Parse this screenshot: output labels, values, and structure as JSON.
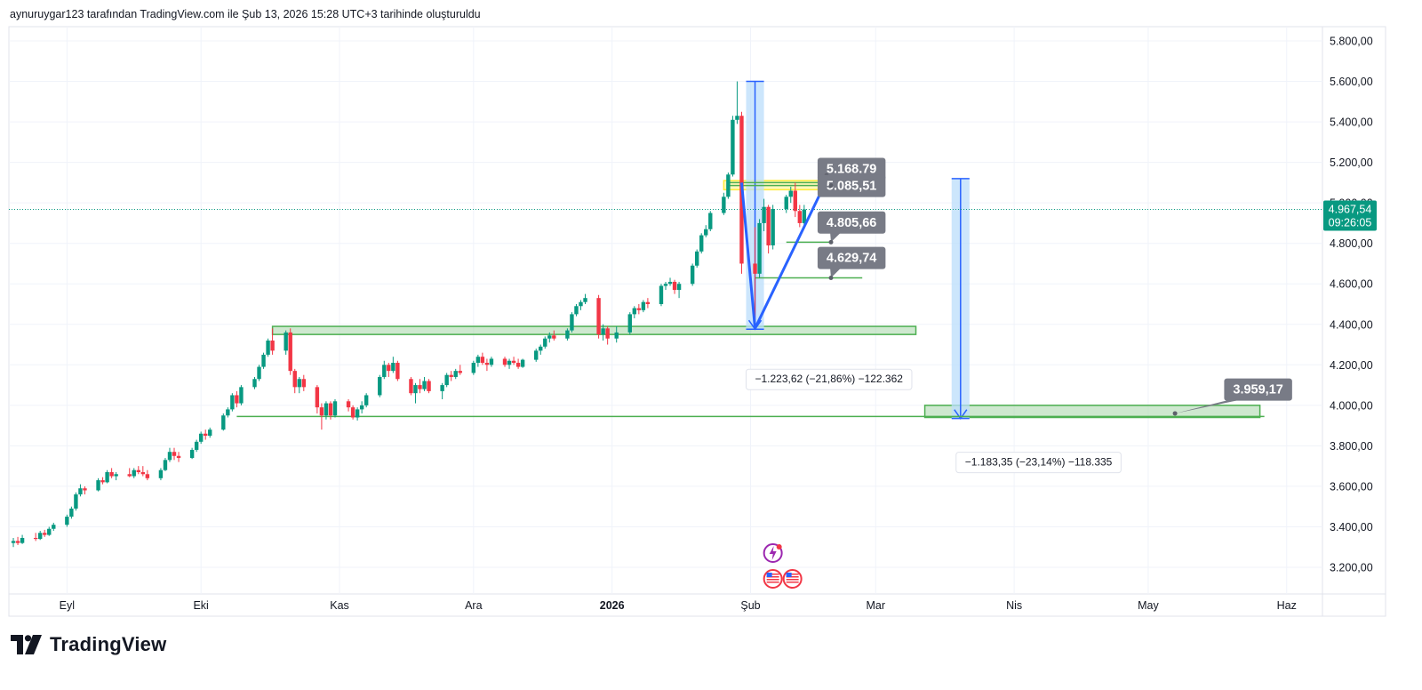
{
  "header": {
    "caption": "aynuruygar123 tarafından TradingView.com ile Şub 13, 2026 15:28 UTC+3 tarihinde oluşturuldu"
  },
  "brand": {
    "name": "TradingView",
    "logo_icon": "tradingview-logo-icon"
  },
  "colors": {
    "up": "#089981",
    "down": "#f23645",
    "grid": "#f0f3fa",
    "axis_text": "#131722",
    "zone_fill": "#a5d6a7",
    "zone_stroke": "#4caf50",
    "measure_fill": "#bbdefb",
    "measure_line": "#2962ff",
    "callout_bg": "#787b86",
    "highlight": "#ffeb3b"
  },
  "chart_data": {
    "type": "candlestick",
    "title": "",
    "xlabel": "",
    "ylabel": "",
    "ylim": [
      3050,
      5900
    ],
    "y_ticks": [
      "5.800,00",
      "5.600,00",
      "5.400,00",
      "5.200,00",
      "5.000,00",
      "4.800,00",
      "4.600,00",
      "4.400,00",
      "4.200,00",
      "4.000,00",
      "3.800,00",
      "3.600,00",
      "3.400,00",
      "3.200,00"
    ],
    "y_tick_values": [
      5800,
      5600,
      5400,
      5200,
      5000,
      4800,
      4600,
      4400,
      4200,
      4000,
      3800,
      3600,
      3400,
      3200
    ],
    "x_ticks": [
      "Eyl",
      "Eki",
      "Kas",
      "Ara",
      "2026",
      "Şub",
      "Mar",
      "Nis",
      "May",
      "Haz"
    ],
    "x_tick_dates": [
      "2025-09-01",
      "2025-10-01",
      "2025-11-01",
      "2025-12-01",
      "2026-01-01",
      "2026-02-01",
      "2026-03-01",
      "2026-04-01",
      "2026-05-01",
      "2026-06-01"
    ],
    "x_range": [
      "2025-08-19",
      "2026-06-09"
    ],
    "last_price": {
      "label": "4.967,54",
      "countdown": "09:26:05",
      "value": 4967.54
    },
    "candles": [
      {
        "date": "2025-08-20",
        "o": 3320,
        "h": 3345,
        "l": 3300,
        "c": 3330
      },
      {
        "date": "2025-08-21",
        "o": 3330,
        "h": 3350,
        "l": 3310,
        "c": 3320
      },
      {
        "date": "2025-08-22",
        "o": 3320,
        "h": 3360,
        "l": 3315,
        "c": 3345
      },
      {
        "date": "2025-08-25",
        "o": 3345,
        "h": 3370,
        "l": 3330,
        "c": 3340
      },
      {
        "date": "2025-08-26",
        "o": 3340,
        "h": 3380,
        "l": 3335,
        "c": 3370
      },
      {
        "date": "2025-08-27",
        "o": 3370,
        "h": 3385,
        "l": 3350,
        "c": 3360
      },
      {
        "date": "2025-08-28",
        "o": 3360,
        "h": 3400,
        "l": 3355,
        "c": 3390
      },
      {
        "date": "2025-08-29",
        "o": 3390,
        "h": 3420,
        "l": 3380,
        "c": 3410
      },
      {
        "date": "2025-09-01",
        "o": 3410,
        "h": 3460,
        "l": 3400,
        "c": 3450
      },
      {
        "date": "2025-09-02",
        "o": 3450,
        "h": 3500,
        "l": 3440,
        "c": 3490
      },
      {
        "date": "2025-09-03",
        "o": 3490,
        "h": 3570,
        "l": 3480,
        "c": 3560
      },
      {
        "date": "2025-09-04",
        "o": 3560,
        "h": 3610,
        "l": 3550,
        "c": 3590
      },
      {
        "date": "2025-09-05",
        "o": 3590,
        "h": 3600,
        "l": 3560,
        "c": 3580
      },
      {
        "date": "2025-09-08",
        "o": 3580,
        "h": 3640,
        "l": 3575,
        "c": 3630
      },
      {
        "date": "2025-09-09",
        "o": 3630,
        "h": 3645,
        "l": 3610,
        "c": 3620
      },
      {
        "date": "2025-09-10",
        "o": 3620,
        "h": 3680,
        "l": 3615,
        "c": 3670
      },
      {
        "date": "2025-09-11",
        "o": 3670,
        "h": 3690,
        "l": 3640,
        "c": 3650
      },
      {
        "date": "2025-09-12",
        "o": 3650,
        "h": 3670,
        "l": 3630,
        "c": 3660
      },
      {
        "date": "2025-09-15",
        "o": 3660,
        "h": 3690,
        "l": 3645,
        "c": 3650
      },
      {
        "date": "2025-09-16",
        "o": 3650,
        "h": 3690,
        "l": 3640,
        "c": 3680
      },
      {
        "date": "2025-09-17",
        "o": 3680,
        "h": 3700,
        "l": 3660,
        "c": 3670
      },
      {
        "date": "2025-09-18",
        "o": 3670,
        "h": 3700,
        "l": 3650,
        "c": 3660
      },
      {
        "date": "2025-09-19",
        "o": 3660,
        "h": 3680,
        "l": 3630,
        "c": 3640
      },
      {
        "date": "2025-09-22",
        "o": 3640,
        "h": 3690,
        "l": 3630,
        "c": 3680
      },
      {
        "date": "2025-09-23",
        "o": 3680,
        "h": 3740,
        "l": 3675,
        "c": 3730
      },
      {
        "date": "2025-09-24",
        "o": 3730,
        "h": 3790,
        "l": 3720,
        "c": 3770
      },
      {
        "date": "2025-09-25",
        "o": 3770,
        "h": 3790,
        "l": 3730,
        "c": 3750
      },
      {
        "date": "2025-09-26",
        "o": 3750,
        "h": 3770,
        "l": 3720,
        "c": 3740
      },
      {
        "date": "2025-09-29",
        "o": 3740,
        "h": 3790,
        "l": 3735,
        "c": 3780
      },
      {
        "date": "2025-09-30",
        "o": 3780,
        "h": 3830,
        "l": 3770,
        "c": 3820
      },
      {
        "date": "2025-10-01",
        "o": 3820,
        "h": 3870,
        "l": 3810,
        "c": 3860
      },
      {
        "date": "2025-10-02",
        "o": 3860,
        "h": 3880,
        "l": 3830,
        "c": 3850
      },
      {
        "date": "2025-10-03",
        "o": 3850,
        "h": 3890,
        "l": 3840,
        "c": 3880
      },
      {
        "date": "2025-10-06",
        "o": 3880,
        "h": 3960,
        "l": 3875,
        "c": 3950
      },
      {
        "date": "2025-10-07",
        "o": 3950,
        "h": 3990,
        "l": 3940,
        "c": 3980
      },
      {
        "date": "2025-10-08",
        "o": 3980,
        "h": 4060,
        "l": 3970,
        "c": 4050
      },
      {
        "date": "2025-10-09",
        "o": 4050,
        "h": 4070,
        "l": 3990,
        "c": 4010
      },
      {
        "date": "2025-10-10",
        "o": 4010,
        "h": 4100,
        "l": 4000,
        "c": 4090
      },
      {
        "date": "2025-10-13",
        "o": 4090,
        "h": 4140,
        "l": 4080,
        "c": 4130
      },
      {
        "date": "2025-10-14",
        "o": 4130,
        "h": 4200,
        "l": 4120,
        "c": 4190
      },
      {
        "date": "2025-10-15",
        "o": 4190,
        "h": 4260,
        "l": 4180,
        "c": 4250
      },
      {
        "date": "2025-10-16",
        "o": 4250,
        "h": 4330,
        "l": 4240,
        "c": 4320
      },
      {
        "date": "2025-10-17",
        "o": 4320,
        "h": 4380,
        "l": 4250,
        "c": 4270
      },
      {
        "date": "2025-10-20",
        "o": 4270,
        "h": 4370,
        "l": 4250,
        "c": 4360
      },
      {
        "date": "2025-10-21",
        "o": 4360,
        "h": 4380,
        "l": 4150,
        "c": 4170
      },
      {
        "date": "2025-10-22",
        "o": 4170,
        "h": 4180,
        "l": 4060,
        "c": 4090
      },
      {
        "date": "2025-10-23",
        "o": 4090,
        "h": 4140,
        "l": 4060,
        "c": 4130
      },
      {
        "date": "2025-10-24",
        "o": 4130,
        "h": 4150,
        "l": 4070,
        "c": 4090
      },
      {
        "date": "2025-10-27",
        "o": 4090,
        "h": 4100,
        "l": 3960,
        "c": 3990
      },
      {
        "date": "2025-10-28",
        "o": 3990,
        "h": 4010,
        "l": 3880,
        "c": 3950
      },
      {
        "date": "2025-10-29",
        "o": 3950,
        "h": 4020,
        "l": 3930,
        "c": 4010
      },
      {
        "date": "2025-10-30",
        "o": 4010,
        "h": 4020,
        "l": 3930,
        "c": 3950
      },
      {
        "date": "2025-10-31",
        "o": 3950,
        "h": 4030,
        "l": 3940,
        "c": 4020
      },
      {
        "date": "2025-11-03",
        "o": 4020,
        "h": 4030,
        "l": 3970,
        "c": 3990
      },
      {
        "date": "2025-11-04",
        "o": 3990,
        "h": 4000,
        "l": 3930,
        "c": 3940
      },
      {
        "date": "2025-11-05",
        "o": 3940,
        "h": 3990,
        "l": 3925,
        "c": 3980
      },
      {
        "date": "2025-11-06",
        "o": 3980,
        "h": 4020,
        "l": 3960,
        "c": 4000
      },
      {
        "date": "2025-11-07",
        "o": 4000,
        "h": 4060,
        "l": 3990,
        "c": 4050
      },
      {
        "date": "2025-11-10",
        "o": 4050,
        "h": 4150,
        "l": 4040,
        "c": 4140
      },
      {
        "date": "2025-11-11",
        "o": 4140,
        "h": 4220,
        "l": 4130,
        "c": 4200
      },
      {
        "date": "2025-11-12",
        "o": 4200,
        "h": 4210,
        "l": 4140,
        "c": 4170
      },
      {
        "date": "2025-11-13",
        "o": 4170,
        "h": 4240,
        "l": 4160,
        "c": 4210
      },
      {
        "date": "2025-11-14",
        "o": 4210,
        "h": 4220,
        "l": 4120,
        "c": 4130
      },
      {
        "date": "2025-11-17",
        "o": 4130,
        "h": 4140,
        "l": 4050,
        "c": 4060
      },
      {
        "date": "2025-11-18",
        "o": 4060,
        "h": 4110,
        "l": 4010,
        "c": 4100
      },
      {
        "date": "2025-11-19",
        "o": 4100,
        "h": 4130,
        "l": 4060,
        "c": 4080
      },
      {
        "date": "2025-11-20",
        "o": 4080,
        "h": 4140,
        "l": 4070,
        "c": 4120
      },
      {
        "date": "2025-11-21",
        "o": 4120,
        "h": 4130,
        "l": 4060,
        "c": 4070
      },
      {
        "date": "2025-11-24",
        "o": 4070,
        "h": 4110,
        "l": 4030,
        "c": 4100
      },
      {
        "date": "2025-11-25",
        "o": 4100,
        "h": 4160,
        "l": 4090,
        "c": 4150
      },
      {
        "date": "2025-11-26",
        "o": 4150,
        "h": 4170,
        "l": 4120,
        "c": 4140
      },
      {
        "date": "2025-11-27",
        "o": 4140,
        "h": 4180,
        "l": 4130,
        "c": 4170
      },
      {
        "date": "2025-11-28",
        "o": 4170,
        "h": 4200,
        "l": 4150,
        "c": 4160
      },
      {
        "date": "2025-12-01",
        "o": 4160,
        "h": 4220,
        "l": 4150,
        "c": 4210
      },
      {
        "date": "2025-12-02",
        "o": 4210,
        "h": 4250,
        "l": 4190,
        "c": 4240
      },
      {
        "date": "2025-12-03",
        "o": 4240,
        "h": 4260,
        "l": 4200,
        "c": 4210
      },
      {
        "date": "2025-12-04",
        "o": 4210,
        "h": 4230,
        "l": 4170,
        "c": 4200
      },
      {
        "date": "2025-12-05",
        "o": 4200,
        "h": 4240,
        "l": 4190,
        "c": 4230
      },
      {
        "date": "2025-12-08",
        "o": 4230,
        "h": 4240,
        "l": 4190,
        "c": 4200
      },
      {
        "date": "2025-12-09",
        "o": 4200,
        "h": 4230,
        "l": 4180,
        "c": 4220
      },
      {
        "date": "2025-12-10",
        "o": 4220,
        "h": 4240,
        "l": 4200,
        "c": 4210
      },
      {
        "date": "2025-12-11",
        "o": 4210,
        "h": 4230,
        "l": 4180,
        "c": 4190
      },
      {
        "date": "2025-12-12",
        "o": 4190,
        "h": 4230,
        "l": 4185,
        "c": 4225
      },
      {
        "date": "2025-12-15",
        "o": 4225,
        "h": 4280,
        "l": 4215,
        "c": 4270
      },
      {
        "date": "2025-12-16",
        "o": 4270,
        "h": 4300,
        "l": 4250,
        "c": 4290
      },
      {
        "date": "2025-12-17",
        "o": 4290,
        "h": 4340,
        "l": 4280,
        "c": 4330
      },
      {
        "date": "2025-12-18",
        "o": 4330,
        "h": 4360,
        "l": 4310,
        "c": 4345
      },
      {
        "date": "2025-12-19",
        "o": 4345,
        "h": 4370,
        "l": 4320,
        "c": 4330
      },
      {
        "date": "2025-12-22",
        "o": 4330,
        "h": 4380,
        "l": 4320,
        "c": 4370
      },
      {
        "date": "2025-12-23",
        "o": 4370,
        "h": 4460,
        "l": 4360,
        "c": 4450
      },
      {
        "date": "2025-12-24",
        "o": 4450,
        "h": 4500,
        "l": 4440,
        "c": 4490
      },
      {
        "date": "2025-12-25",
        "o": 4490,
        "h": 4520,
        "l": 4470,
        "c": 4510
      },
      {
        "date": "2025-12-26",
        "o": 4510,
        "h": 4550,
        "l": 4500,
        "c": 4530
      },
      {
        "date": "2025-12-29",
        "o": 4530,
        "h": 4545,
        "l": 4330,
        "c": 4350
      },
      {
        "date": "2025-12-30",
        "o": 4350,
        "h": 4400,
        "l": 4320,
        "c": 4380
      },
      {
        "date": "2025-12-31",
        "o": 4380,
        "h": 4390,
        "l": 4300,
        "c": 4330
      },
      {
        "date": "2026-01-02",
        "o": 4330,
        "h": 4390,
        "l": 4310,
        "c": 4360
      },
      {
        "date": "2026-01-05",
        "o": 4360,
        "h": 4460,
        "l": 4350,
        "c": 4450
      },
      {
        "date": "2026-01-06",
        "o": 4450,
        "h": 4490,
        "l": 4430,
        "c": 4480
      },
      {
        "date": "2026-01-07",
        "o": 4480,
        "h": 4500,
        "l": 4450,
        "c": 4470
      },
      {
        "date": "2026-01-08",
        "o": 4470,
        "h": 4520,
        "l": 4460,
        "c": 4510
      },
      {
        "date": "2026-01-09",
        "o": 4510,
        "h": 4530,
        "l": 4480,
        "c": 4500
      },
      {
        "date": "2026-01-12",
        "o": 4500,
        "h": 4600,
        "l": 4490,
        "c": 4590
      },
      {
        "date": "2026-01-13",
        "o": 4590,
        "h": 4610,
        "l": 4570,
        "c": 4600
      },
      {
        "date": "2026-01-14",
        "o": 4600,
        "h": 4630,
        "l": 4590,
        "c": 4610
      },
      {
        "date": "2026-01-15",
        "o": 4610,
        "h": 4620,
        "l": 4550,
        "c": 4570
      },
      {
        "date": "2026-01-16",
        "o": 4570,
        "h": 4610,
        "l": 4530,
        "c": 4600
      },
      {
        "date": "2026-01-19",
        "o": 4600,
        "h": 4700,
        "l": 4590,
        "c": 4690
      },
      {
        "date": "2026-01-20",
        "o": 4690,
        "h": 4770,
        "l": 4680,
        "c": 4760
      },
      {
        "date": "2026-01-21",
        "o": 4760,
        "h": 4850,
        "l": 4750,
        "c": 4840
      },
      {
        "date": "2026-01-22",
        "o": 4840,
        "h": 4890,
        "l": 4830,
        "c": 4870
      },
      {
        "date": "2026-01-23",
        "o": 4870,
        "h": 4960,
        "l": 4860,
        "c": 4950
      },
      {
        "date": "2026-01-26",
        "o": 4950,
        "h": 5050,
        "l": 4940,
        "c": 5030
      },
      {
        "date": "2026-01-27",
        "o": 5030,
        "h": 5150,
        "l": 5020,
        "c": 5140
      },
      {
        "date": "2026-01-28",
        "o": 5140,
        "h": 5430,
        "l": 5130,
        "c": 5410
      },
      {
        "date": "2026-01-29",
        "o": 5410,
        "h": 5600,
        "l": 5390,
        "c": 5430
      },
      {
        "date": "2026-01-30",
        "o": 5430,
        "h": 5450,
        "l": 4650,
        "c": 4700
      },
      {
        "date": "2026-02-02",
        "o": 4700,
        "h": 4880,
        "l": 4380,
        "c": 4650
      },
      {
        "date": "2026-02-03",
        "o": 4650,
        "h": 4920,
        "l": 4630,
        "c": 4900
      },
      {
        "date": "2026-02-04",
        "o": 4900,
        "h": 5020,
        "l": 4860,
        "c": 4980
      },
      {
        "date": "2026-02-05",
        "o": 4980,
        "h": 4990,
        "l": 4750,
        "c": 4790
      },
      {
        "date": "2026-02-06",
        "o": 4790,
        "h": 4990,
        "l": 4770,
        "c": 4970
      },
      {
        "date": "2026-02-09",
        "o": 4970,
        "h": 5040,
        "l": 4950,
        "c": 5030
      },
      {
        "date": "2026-02-10",
        "o": 5030,
        "h": 5080,
        "l": 5000,
        "c": 5060
      },
      {
        "date": "2026-02-11",
        "o": 5060,
        "h": 5100,
        "l": 4930,
        "c": 4960
      },
      {
        "date": "2026-02-12",
        "o": 4960,
        "h": 4990,
        "l": 4880,
        "c": 4900
      },
      {
        "date": "2026-02-13",
        "o": 4900,
        "h": 4990,
        "l": 4890,
        "c": 4967.54
      }
    ],
    "zones": [
      {
        "from": "2025-10-17",
        "to": "2026-03-10",
        "low": 4350,
        "high": 4390
      },
      {
        "from": "2026-03-12",
        "to": "2026-05-26",
        "low": 3940,
        "high": 4000
      }
    ],
    "h_lines": [
      {
        "from": "2025-10-09",
        "to": "2026-05-27",
        "value": 3945
      },
      {
        "from": "2026-02-09",
        "to": "2026-02-19",
        "value": 4805.66
      },
      {
        "from": "2026-02-02",
        "to": "2026-02-26",
        "value": 4629.74
      },
      {
        "from": "2026-01-27",
        "to": "2026-02-19",
        "value": 5085.51
      },
      {
        "from": "2026-01-27",
        "to": "2026-02-19",
        "value": 5100
      }
    ],
    "highlight_box": {
      "from": "2026-01-26",
      "to": "2026-02-19",
      "low": 5065,
      "high": 5110
    },
    "measures": [
      {
        "from": "2026-01-31",
        "to": "2026-02-04",
        "top": 5600,
        "bottom": 4376,
        "label": "−1.223,62 (−21,86%) −122.362",
        "label_anchor": {
          "date": "2026-01-31",
          "value": 4130
        }
      },
      {
        "from": "2026-03-18",
        "to": "2026-03-22",
        "top": 5120,
        "bottom": 3935,
        "label": "−1.183,35 (−23,14%) −118.335",
        "label_anchor": {
          "date": "2026-03-19",
          "value": 3720
        }
      }
    ],
    "trend_lines": [
      {
        "x1": "2026-01-30",
        "y1": 5100,
        "x2": "2026-02-02",
        "y2": 4380
      },
      {
        "x1": "2026-02-02",
        "y1": 4380,
        "x2": "2026-02-18",
        "y2": 5110
      }
    ],
    "callouts": [
      {
        "label": "5.168.79",
        "box_date": "2026-02-16",
        "box_value": 5170,
        "anchor_date": "2026-02-18",
        "anchor_value": 5135
      },
      {
        "label": "5.085,51",
        "box_date": "2026-02-16",
        "box_value": 5085.51,
        "anchor_date": "2026-02-19",
        "anchor_value": 5085.51
      },
      {
        "label": "4.805,66",
        "box_date": "2026-02-16",
        "box_value": 4905,
        "anchor_date": "2026-02-19",
        "anchor_value": 4805.66
      },
      {
        "label": "4.629,74",
        "box_date": "2026-02-16",
        "box_value": 4730,
        "anchor_date": "2026-02-19",
        "anchor_value": 4629.74
      },
      {
        "label": "3.959,17",
        "box_date": "2026-05-18",
        "box_value": 4080,
        "anchor_date": "2026-05-07",
        "anchor_value": 3960
      }
    ],
    "event_icons": [
      "flash-event-icon",
      "us-flag-event-icon",
      "us-flag-event-icon"
    ]
  }
}
